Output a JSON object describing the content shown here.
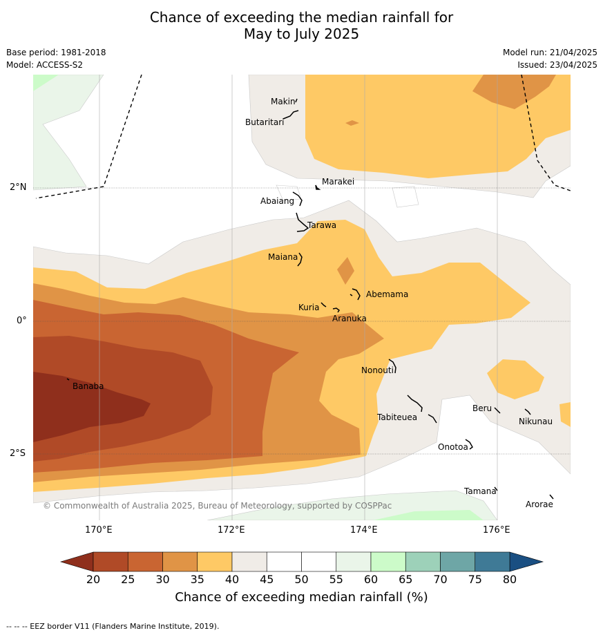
{
  "title": {
    "line1": "Chance of exceeding the median rainfall for",
    "line2": "May to July 2025"
  },
  "meta": {
    "base_period": "Base period: 1981-2018",
    "model": "Model: ACCESS-S2",
    "model_run": "Model run: 21/04/2025",
    "issued": "Issued: 23/04/2025"
  },
  "map": {
    "lon_labels": [
      "170°E",
      "172°E",
      "174°E",
      "176°E"
    ],
    "lat_labels": [
      "2°N",
      "0°",
      "2°S"
    ],
    "places": [
      {
        "name": "Makin"
      },
      {
        "name": "Butaritari"
      },
      {
        "name": "Marakei"
      },
      {
        "name": "Abaiang"
      },
      {
        "name": "Tarawa"
      },
      {
        "name": "Maiana"
      },
      {
        "name": "Abemama"
      },
      {
        "name": "Kuria"
      },
      {
        "name": "Aranuka"
      },
      {
        "name": "Banaba"
      },
      {
        "name": "Nonouti"
      },
      {
        "name": "Tabiteuea"
      },
      {
        "name": "Beru"
      },
      {
        "name": "Nikunau"
      },
      {
        "name": "Onotoa"
      },
      {
        "name": "Tamana"
      },
      {
        "name": "Arorae"
      }
    ],
    "copyright": "© Commonwealth of Australia 2025, Bureau of Meteorology, supported by COSPPac"
  },
  "colorbar": {
    "labels": [
      "20",
      "25",
      "30",
      "35",
      "40",
      "45",
      "50",
      "55",
      "60",
      "65",
      "70",
      "75",
      "80"
    ],
    "colors": [
      "#b04a27",
      "#c96532",
      "#e09446",
      "#fec965",
      "#f0ece7",
      "#ffffff",
      "#ffffff",
      "#eaf5e9",
      "#ccfbc9",
      "#9dd1b9",
      "#6ea6a6",
      "#3f7a96"
    ],
    "under_color": "#8f2f1c",
    "over_color": "#1a4f82",
    "title": "Chance of exceeding median rainfall (%)"
  },
  "footnote": "--  --  -- EEZ border V11 (Flanders Marine Institute, 2019)."
}
